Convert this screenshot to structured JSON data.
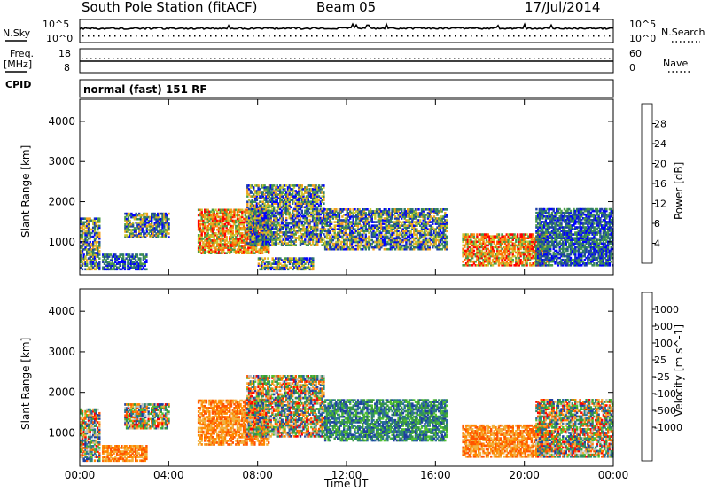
{
  "header": {
    "station": "South Pole Station (fitACF)",
    "beam": "Beam 05",
    "date": "17/Jul/2014"
  },
  "noise_panel": {
    "left_label": "N.Sky",
    "right_label": "N.Search",
    "left_ticks": [
      "10^5",
      "10^0"
    ],
    "right_ticks": [
      "10^5",
      "10^0"
    ]
  },
  "freq_panel": {
    "left_label_1": "Freq.",
    "left_label_2": "[MHz]",
    "right_label": "Nave",
    "left_ticks": [
      "18",
      "8"
    ],
    "right_ticks": [
      "60",
      "0"
    ]
  },
  "cpid": {
    "label": "CPID",
    "value": "normal (fast) 151 RF"
  },
  "chart_data": [
    {
      "type": "heatmap",
      "name": "power",
      "xlabel": "Time UT",
      "ylabel": "Slant Range [km]",
      "xlim": [
        0,
        24
      ],
      "ylim": [
        180,
        4550
      ],
      "y_ticks": [
        1000,
        2000,
        3000,
        4000
      ],
      "x_ticks": [
        "00:00",
        "04:00",
        "08:00",
        "12:00",
        "16:00",
        "20:00",
        "00:00"
      ],
      "colorbar": {
        "label": "Power [dB]",
        "ticks": [
          "4",
          "8",
          "12",
          "16",
          "20",
          "24",
          "28"
        ],
        "colors": [
          "#0000ff",
          "#1e3fa8",
          "#2e7a6a",
          "#4a9a4a",
          "#c8c832",
          "#f0a020",
          "#ff6600",
          "#ff0000"
        ]
      },
      "regions": [
        {
          "t": [
            0.0,
            0.9
          ],
          "r": [
            300,
            1600
          ],
          "level": "mid"
        },
        {
          "t": [
            1.0,
            3.0
          ],
          "r": [
            300,
            700
          ],
          "level": "low"
        },
        {
          "t": [
            2.0,
            4.0
          ],
          "r": [
            1100,
            1700
          ],
          "level": "mid"
        },
        {
          "t": [
            5.3,
            8.5
          ],
          "r": [
            700,
            1800
          ],
          "level": "high"
        },
        {
          "t": [
            7.5,
            11.0
          ],
          "r": [
            900,
            2400
          ],
          "level": "mid"
        },
        {
          "t": [
            8.0,
            10.5
          ],
          "r": [
            300,
            600
          ],
          "level": "mid"
        },
        {
          "t": [
            11.0,
            16.5
          ],
          "r": [
            800,
            1800
          ],
          "level": "mid"
        },
        {
          "t": [
            17.2,
            21.0
          ],
          "r": [
            400,
            1200
          ],
          "level": "high"
        },
        {
          "t": [
            20.5,
            24.0
          ],
          "r": [
            400,
            1800
          ],
          "level": "low"
        }
      ]
    },
    {
      "type": "heatmap",
      "name": "velocity",
      "xlabel": "Time UT",
      "ylabel": "Slant Range [km]",
      "xlim": [
        0,
        24
      ],
      "ylim": [
        180,
        4550
      ],
      "y_ticks": [
        1000,
        2000,
        3000,
        4000
      ],
      "x_ticks": [
        "00:00",
        "04:00",
        "08:00",
        "12:00",
        "16:00",
        "20:00",
        "00:00"
      ],
      "colorbar": {
        "label": "Velocity [m s^-1]",
        "ticks": [
          "1000",
          "500",
          "100",
          "25",
          "-25",
          "-100",
          "-500",
          "-1000"
        ],
        "colors": [
          "#1f3fa0",
          "#2a6aa0",
          "#2e8a6a",
          "#3a9a3a",
          "#50c030",
          "#c0c0c0",
          "#f0b040",
          "#ff8800",
          "#ff5500",
          "#ff0000"
        ]
      },
      "regions": [
        {
          "t": [
            0.0,
            0.9
          ],
          "r": [
            300,
            1600
          ],
          "level": "mix"
        },
        {
          "t": [
            1.0,
            3.0
          ],
          "r": [
            300,
            700
          ],
          "level": "away"
        },
        {
          "t": [
            2.0,
            4.0
          ],
          "r": [
            1100,
            1700
          ],
          "level": "mix"
        },
        {
          "t": [
            5.3,
            8.5
          ],
          "r": [
            700,
            1800
          ],
          "level": "away"
        },
        {
          "t": [
            7.5,
            11.0
          ],
          "r": [
            900,
            2400
          ],
          "level": "mix"
        },
        {
          "t": [
            11.0,
            16.5
          ],
          "r": [
            800,
            1800
          ],
          "level": "toward"
        },
        {
          "t": [
            17.2,
            21.0
          ],
          "r": [
            400,
            1200
          ],
          "level": "away"
        },
        {
          "t": [
            20.5,
            24.0
          ],
          "r": [
            400,
            1800
          ],
          "level": "mix"
        }
      ]
    }
  ]
}
